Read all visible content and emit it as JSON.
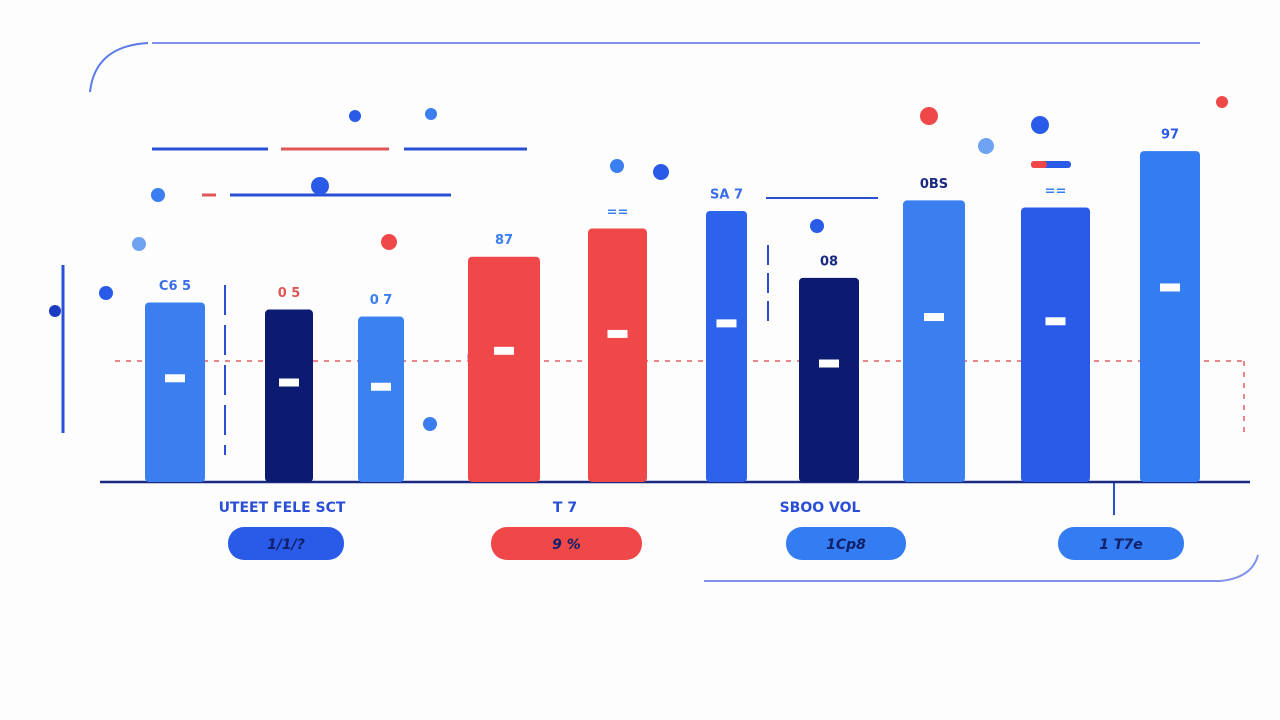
{
  "chart_data": {
    "type": "bar",
    "values": [
      51,
      49,
      47,
      64,
      72,
      77,
      58,
      80,
      78,
      94
    ],
    "colors": [
      "#3a7ef0",
      "#0d1a72",
      "#3b82f0",
      "#f04848",
      "#f04848",
      "#2d62ea",
      "#0d1a72",
      "#3a7ef0",
      "#2a5ae8",
      "#347cf2"
    ],
    "ylim": [
      0,
      100
    ],
    "annotations": [
      "C6 5",
      "0 5",
      "0 7",
      "87",
      "==",
      "SA 7",
      "08",
      "0BS",
      "==",
      "97"
    ],
    "group_labels": [
      "UTEET FELE SCT",
      "T 7",
      "SBOO VOL"
    ],
    "pills": [
      {
        "label": "1/1/?",
        "color": "#2a5ae8"
      },
      {
        "label": "9 %",
        "color": "#f04848"
      },
      {
        "label": "1Cp8",
        "color": "#347cf2"
      },
      {
        "label": "1 T7e",
        "color": "#347cf2"
      }
    ]
  }
}
